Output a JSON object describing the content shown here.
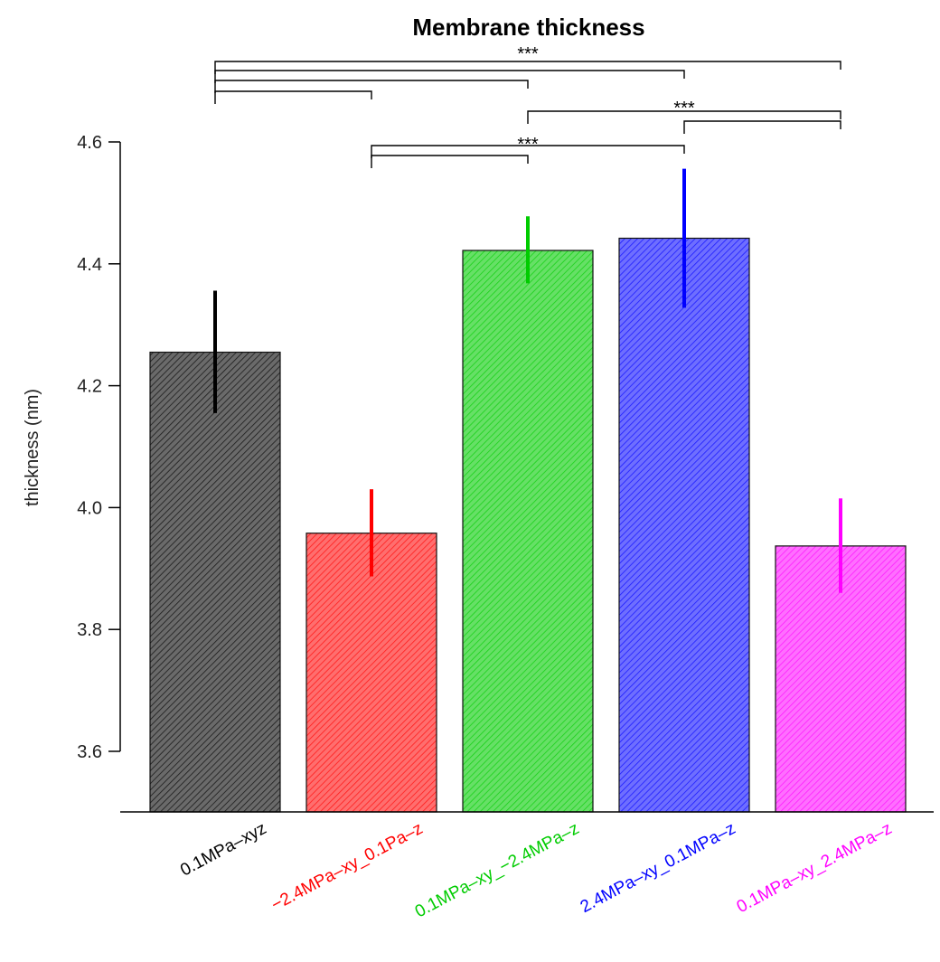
{
  "chart_data": {
    "type": "bar",
    "title": "Membrane thickness",
    "ylabel": "thickness (nm)",
    "xlabel": "",
    "ylim": [
      3.5,
      4.6
    ],
    "yticks": [
      3.6,
      3.8,
      4.0,
      4.2,
      4.4,
      4.6
    ],
    "yticks_labels": [
      "3.6",
      "3.8",
      "4.0",
      "4.2",
      "4.4",
      "4.6"
    ],
    "categories": [
      "0.1MPa–xyz",
      "−2.4MPa–xy_0.1Pa–z",
      "0.1MPa–xy_−2.4MPa–z",
      "2.4MPa–xy_0.1MPa–z",
      "0.1MPa–xy_2.4MPa–z"
    ],
    "values": [
      4.255,
      3.958,
      4.422,
      4.442,
      3.937
    ],
    "error_low": [
      4.155,
      3.887,
      4.368,
      4.328,
      3.86
    ],
    "error_high": [
      4.356,
      4.03,
      4.478,
      4.556,
      4.015
    ],
    "colors": [
      "#000000",
      "#ff0000",
      "#00cc00",
      "#0000ff",
      "#ff00ff"
    ],
    "fill_colors": [
      "#6a6a6a",
      "#ff6e6e",
      "#66e066",
      "#6e6eff",
      "#ff6eff"
    ],
    "hatch": "diagonal",
    "grid": false,
    "significance": [
      {
        "from": 0,
        "to": 4,
        "label": "***"
      },
      {
        "from": 0,
        "to": 3,
        "label": ""
      },
      {
        "from": 0,
        "to": 2,
        "label": ""
      },
      {
        "from": 0,
        "to": 1,
        "label": ""
      },
      {
        "from": 2,
        "to": 4,
        "label": "***"
      },
      {
        "from": 3,
        "to": 4,
        "label": ""
      },
      {
        "from": 1,
        "to": 3,
        "label": "***"
      },
      {
        "from": 1,
        "to": 2,
        "label": ""
      }
    ]
  }
}
